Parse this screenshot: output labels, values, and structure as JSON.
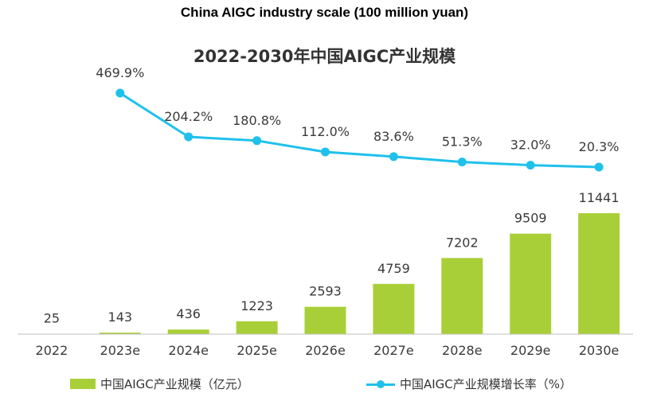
{
  "header": {
    "title_en": "China AIGC industry scale (100 million yuan)"
  },
  "chart_data": {
    "type": "bar+line",
    "title": "2022-2030年中国AIGC产业规模",
    "categories": [
      "2022",
      "2023e",
      "2024e",
      "2025e",
      "2026e",
      "2027e",
      "2028e",
      "2029e",
      "2030e"
    ],
    "series": [
      {
        "name": "中国AIGC产业规模（亿元）",
        "type": "bar",
        "values": [
          25,
          143,
          436,
          1223,
          2593,
          4759,
          7202,
          9509,
          11441
        ],
        "labels": [
          "25",
          "143",
          "436",
          "1223",
          "2593",
          "4759",
          "7202",
          "9509",
          "11441"
        ]
      },
      {
        "name": "中国AIGC产业规模增长率（%）",
        "type": "line",
        "x": [
          "2023e",
          "2024e",
          "2025e",
          "2026e",
          "2027e",
          "2028e",
          "2029e",
          "2030e"
        ],
        "values": [
          469.9,
          204.2,
          180.8,
          112.0,
          83.6,
          51.3,
          32.0,
          20.3
        ],
        "labels": [
          "469.9%",
          "204.2%",
          "180.8%",
          "112.0%",
          "83.6%",
          "51.3%",
          "32.0%",
          "20.3%"
        ]
      }
    ],
    "bar_ylim": [
      0,
      11441
    ],
    "line_ylim": [
      20.3,
      469.9
    ],
    "legend_position": "bottom",
    "grid": false
  },
  "colors": {
    "bar": "#a9cf38",
    "line": "#1fc1ea",
    "axis": "#bfbfbf"
  }
}
